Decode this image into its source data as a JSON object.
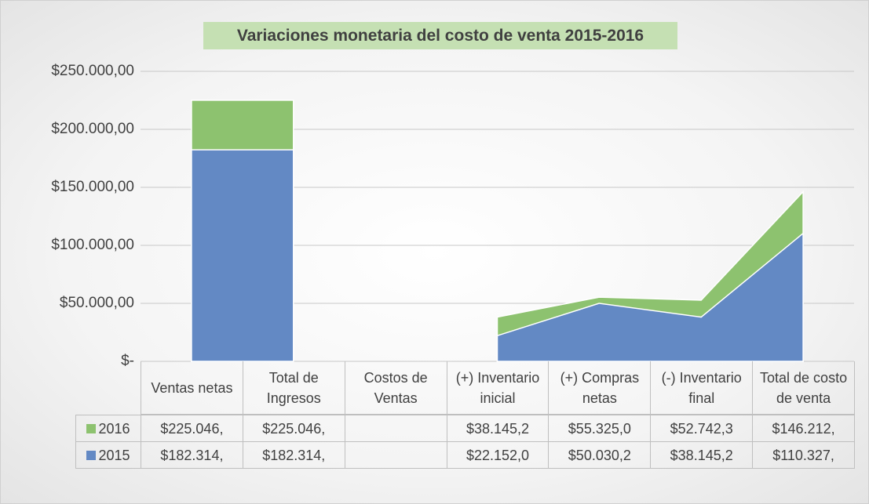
{
  "chart_data": {
    "type": "area",
    "title": "Variaciones monetaria del costo de venta 2015-2016",
    "categories": [
      "Ventas netas",
      "Total de Ingresos",
      "Costos de Ventas",
      "(+) Inventario inicial",
      "(+) Compras netas",
      "(-) Inventario final",
      "Total de costo de venta"
    ],
    "series": [
      {
        "name": "2016",
        "color": "#8dc26f",
        "values": [
          225046,
          225046,
          null,
          38145.2,
          55325.0,
          52742.3,
          146212
        ],
        "value_labels": [
          "$225.046,",
          "$225.046,",
          null,
          "$38.145,2",
          "$55.325,0",
          "$52.742,3",
          "$146.212,"
        ]
      },
      {
        "name": "2015",
        "color": "#6389c4",
        "values": [
          182314,
          182314,
          null,
          22152.0,
          50030.2,
          38145.2,
          110327
        ],
        "value_labels": [
          "$182.314,",
          "$182.314,",
          null,
          "$22.152,0",
          "$50.030,2",
          "$38.145,2",
          "$110.327,"
        ]
      }
    ],
    "ylim": [
      0,
      250000
    ],
    "yticks": [
      {
        "value": 0,
        "label": "$-"
      },
      {
        "value": 50000,
        "label": "$50.000,00"
      },
      {
        "value": 100000,
        "label": "$100.000,00"
      },
      {
        "value": 150000,
        "label": "$150.000,00"
      },
      {
        "value": 200000,
        "label": "$200.000,00"
      },
      {
        "value": 250000,
        "label": "$250.000,00"
      }
    ],
    "grid": true,
    "legend": "table"
  }
}
